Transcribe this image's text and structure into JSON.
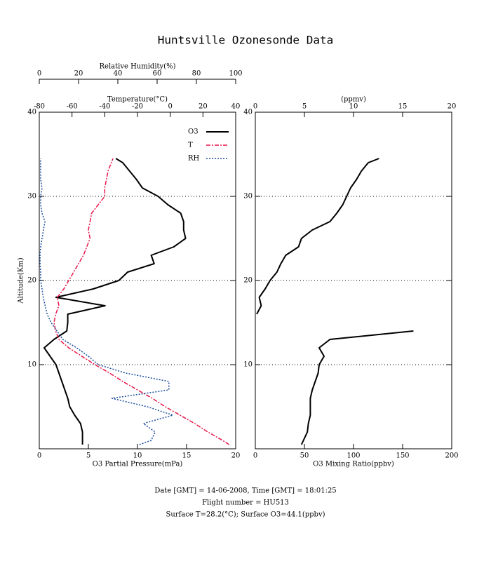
{
  "chart_data": [
    {
      "type": "line",
      "title": "Huntsville Ozonesonde Data",
      "xlabel": "O3 Partial Pressure(mPa)",
      "ylabel": "Altitude(Km)",
      "xlim": [
        0,
        20
      ],
      "xticks": [
        0,
        5,
        10,
        15,
        20
      ],
      "x2label": "Temperature(°C)",
      "x2lim": [
        -80,
        40
      ],
      "x2ticks": [
        -80,
        -60,
        -40,
        -20,
        0,
        20,
        40
      ],
      "x3label": "Relative Humidity(%)",
      "x3lim": [
        0,
        100
      ],
      "x3ticks": [
        0,
        20,
        40,
        60,
        80,
        100
      ],
      "ylim": [
        0,
        40
      ],
      "yticks": [
        10,
        20,
        30,
        40
      ],
      "grid": true,
      "legend": "upper right",
      "y": [
        0.5,
        1,
        2,
        3,
        4,
        5,
        6,
        7,
        8,
        9,
        10,
        11,
        12,
        13,
        14,
        15,
        16,
        17,
        18,
        19,
        20,
        21,
        22,
        23,
        24,
        25,
        26,
        27,
        28,
        29,
        30,
        31,
        32,
        33,
        34,
        34.5
      ],
      "series": [
        {
          "name": "O3",
          "color": "#000000",
          "axis": "x",
          "dash": "solid",
          "values": [
            4.4,
            4.4,
            4.4,
            4.2,
            3.6,
            3.1,
            2.9,
            2.6,
            2.3,
            2.0,
            1.7,
            1.1,
            0.5,
            1.5,
            2.8,
            2.9,
            2.9,
            6.7,
            1.7,
            5.5,
            8.1,
            9.0,
            11.7,
            11.4,
            13.7,
            14.9,
            14.7,
            14.7,
            14.4,
            13.1,
            12.1,
            10.5,
            9.9,
            9.2,
            8.5,
            7.8
          ]
        },
        {
          "name": "T",
          "color": "#e8174a",
          "axis": "x2",
          "dash": "dashdot",
          "values": [
            36,
            32,
            23,
            15,
            6,
            -3,
            -11,
            -20,
            -29,
            -37,
            -46,
            -54,
            -62,
            -68,
            -70,
            -71,
            -70,
            -68,
            -69,
            -65,
            -62,
            -59,
            -56,
            -53,
            -51,
            -49,
            -50,
            -49,
            -48,
            -44,
            -40,
            -40,
            -39,
            -38,
            -36,
            -35
          ]
        },
        {
          "name": "RH",
          "color": "#1c4fa0",
          "axis": "x3",
          "dash": "dotted",
          "values": [
            51,
            57,
            59,
            53,
            68,
            55,
            37,
            66,
            66,
            44,
            30,
            25,
            19,
            12,
            9,
            6,
            4,
            3,
            2,
            1.4,
            0.7,
            0.7,
            0.4,
            0.4,
            0.7,
            1.4,
            2.1,
            2.9,
            1.4,
            0.7,
            0.7,
            1.4,
            0.7,
            0.7,
            0.7,
            0.7
          ]
        }
      ]
    },
    {
      "type": "line",
      "xlabel": "O3 Mixing Ratio(ppbv)",
      "xlim": [
        0,
        200
      ],
      "xticks": [
        0,
        50,
        100,
        150,
        200
      ],
      "x2label": "(ppmv)",
      "x2lim": [
        0,
        20
      ],
      "x2ticks": [
        0,
        5,
        10,
        15,
        20
      ],
      "ylim": [
        0,
        40
      ],
      "yticks": [
        10,
        20,
        30,
        40
      ],
      "grid": true,
      "y": [
        0.5,
        1,
        2,
        3,
        4,
        5,
        6,
        7,
        8,
        9,
        10,
        11,
        12,
        13,
        14,
        15,
        16,
        17,
        18,
        19,
        20,
        21,
        22,
        23,
        24,
        25,
        26,
        27,
        28,
        29,
        30,
        31,
        32,
        33,
        34,
        34.5
      ],
      "series": [
        {
          "color": "#000000",
          "axis": "x",
          "dash": "solid",
          "values": [
            47,
            49,
            53,
            54,
            56,
            56,
            56,
            58,
            61,
            64,
            65,
            70,
            65,
            76,
            161,
            null,
            1.4,
            6,
            4,
            10,
            15,
            22,
            26,
            31,
            44,
            47,
            58,
            76,
            83,
            89,
            93,
            97,
            103,
            108,
            115,
            126
          ]
        }
      ]
    }
  ],
  "footer": [
    "Date [GMT] = 14-06-2008,  Time [GMT] = 18:01:25",
    "Flight number = HU513",
    "Surface T=28.2(°C); Surface O3=44.1(ppbv)"
  ]
}
